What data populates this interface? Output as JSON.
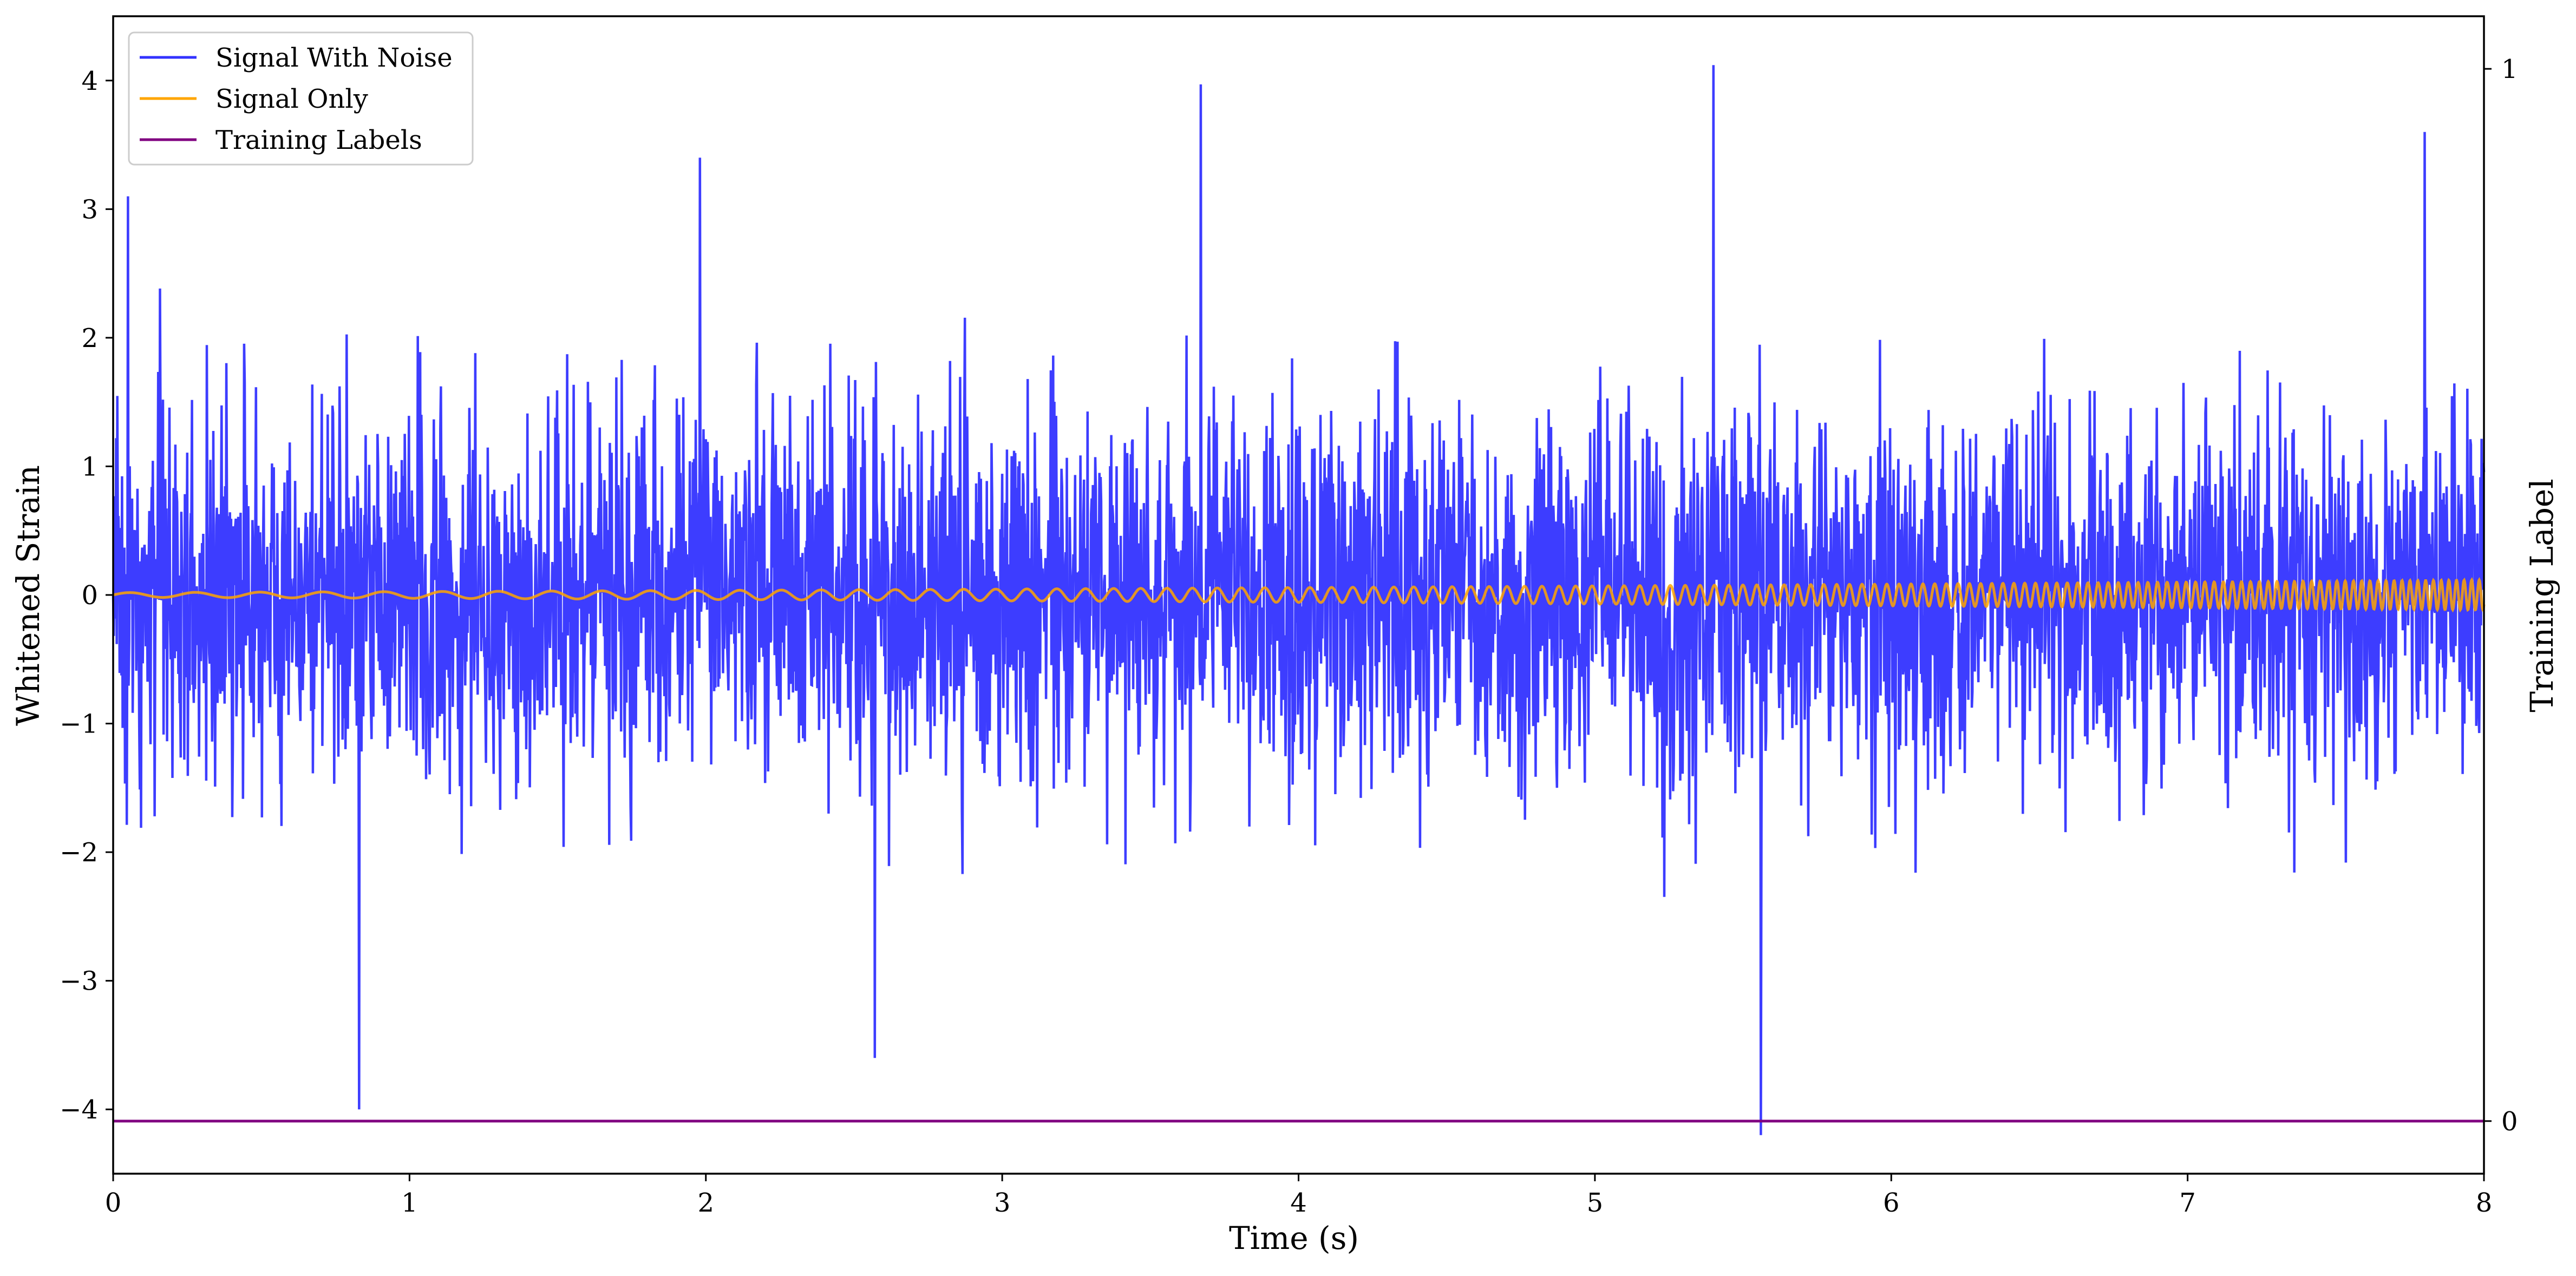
{
  "chart_data": {
    "type": "line",
    "xlabel": "Time (s)",
    "ylabel": "Whitened Strain",
    "y2label": "Training Label",
    "xlim": [
      0,
      8
    ],
    "ylim": [
      -4.5,
      4.5
    ],
    "y2lim": [
      -0.05,
      1.05
    ],
    "x_ticks": [
      "0",
      "1",
      "2",
      "3",
      "4",
      "5",
      "6",
      "7",
      "8"
    ],
    "y_ticks": [
      "−4",
      "−3",
      "−2",
      "−1",
      "0",
      "1",
      "2",
      "3",
      "4"
    ],
    "y2_ticks": [
      "0",
      "1"
    ],
    "grid": false,
    "legend_position": "top-left",
    "series": [
      {
        "name": "Signal With Noise",
        "color": "#3333ff",
        "description": "dense white-noise-like trace, roughly ±3 range",
        "peaks": [
          {
            "x": 3.67,
            "y": 3.97
          },
          {
            "x": 5.4,
            "y": 4.12
          },
          {
            "x": 7.8,
            "y": 3.6
          },
          {
            "x": 0.83,
            "y": -4.0
          },
          {
            "x": 5.56,
            "y": -4.2
          },
          {
            "x": 2.57,
            "y": -3.6
          },
          {
            "x": 0.05,
            "y": 3.1
          },
          {
            "x": 1.98,
            "y": 3.4
          }
        ]
      },
      {
        "name": "Signal Only",
        "color": "#ffa500",
        "description": "chirp around zero, amplitude grows from ~0.02 to ~0.08 and frequency rises with time"
      },
      {
        "name": "Training Labels",
        "color": "#800080",
        "x": [
          0,
          8
        ],
        "y": [
          0,
          0
        ]
      }
    ]
  }
}
